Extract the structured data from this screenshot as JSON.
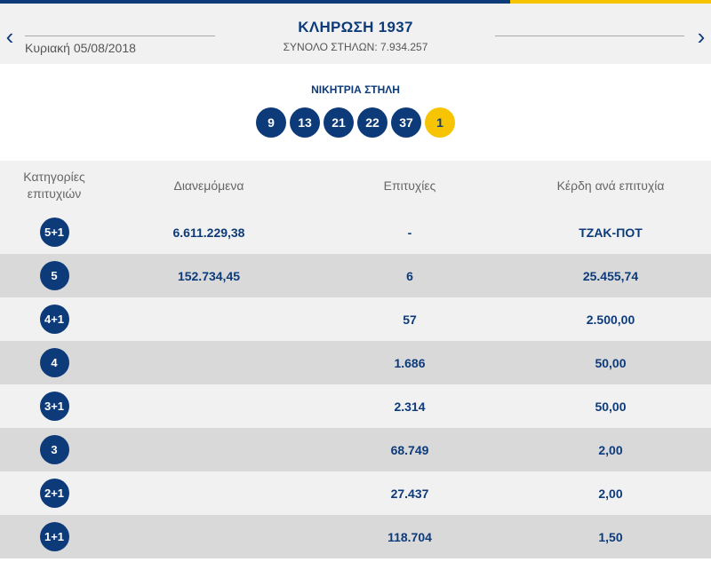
{
  "header": {
    "date": "Κυριακή 05/08/2018",
    "title": "ΚΛΗΡΩΣΗ 1937",
    "subtitle": "ΣΥΝΟΛΟ ΣΤΗΛΩΝ: 7.934.257",
    "prev_icon": "chevron-left-icon",
    "next_icon": "chevron-right-icon"
  },
  "winning": {
    "label": "ΝΙΚΗΤΡΙΑ ΣΤΗΛΗ",
    "numbers": [
      "9",
      "13",
      "21",
      "22",
      "37"
    ],
    "joker": "1"
  },
  "table": {
    "headers": {
      "category_line1": "Κατηγορίες",
      "category_line2": "επιτυχιών",
      "distributed": "Διανεμόμενα",
      "winners": "Επιτυχίες",
      "prize": "Κέρδη ανά επιτυχία"
    },
    "rows": [
      {
        "category": "5+1",
        "distributed": "6.611.229,38",
        "winners": "-",
        "prize": "ΤΖΑΚ-ΠΟΤ"
      },
      {
        "category": "5",
        "distributed": "152.734,45",
        "winners": "6",
        "prize": "25.455,74"
      },
      {
        "category": "4+1",
        "distributed": "",
        "winners": "57",
        "prize": "2.500,00"
      },
      {
        "category": "4",
        "distributed": "",
        "winners": "1.686",
        "prize": "50,00"
      },
      {
        "category": "3+1",
        "distributed": "",
        "winners": "2.314",
        "prize": "50,00"
      },
      {
        "category": "3",
        "distributed": "",
        "winners": "68.749",
        "prize": "2,00"
      },
      {
        "category": "2+1",
        "distributed": "",
        "winners": "27.437",
        "prize": "2,00"
      },
      {
        "category": "1+1",
        "distributed": "",
        "winners": "118.704",
        "prize": "1,50"
      }
    ]
  },
  "colors": {
    "primary": "#0d3b7a",
    "accent": "#f6c400",
    "row_light": "#f1f1f2",
    "row_dark": "#d9d9da"
  }
}
